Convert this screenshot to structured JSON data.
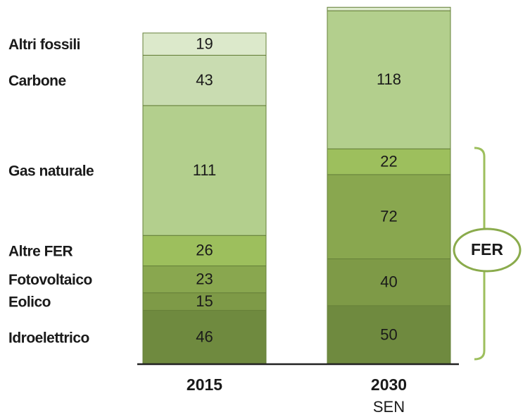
{
  "chart_data": {
    "type": "stacked-bar",
    "categories": [
      "2015",
      "2030"
    ],
    "category_sublabels": [
      null,
      "SEN"
    ],
    "series": [
      {
        "name": "Idroelettrico",
        "color": "#6f8a3f",
        "values": [
          46,
          50
        ]
      },
      {
        "name": "Eolico",
        "color": "#7e9a47",
        "values": [
          15,
          40
        ]
      },
      {
        "name": "Fotovoltaico",
        "color": "#89a74f",
        "values": [
          23,
          72
        ]
      },
      {
        "name": "Altre FER",
        "color": "#9dbf5d",
        "values": [
          26,
          22
        ]
      },
      {
        "name": "Gas naturale",
        "color": "#b3cf8d",
        "values": [
          111,
          118
        ]
      },
      {
        "name": "Carbone",
        "color": "#c9dcb1",
        "values": [
          43,
          0
        ],
        "value_labels": [
          "43",
          null
        ]
      },
      {
        "name": "Altri fossili",
        "color": "#dce9cb",
        "values": [
          19,
          3
        ],
        "value_labels": [
          "19",
          null
        ]
      }
    ],
    "ylim": [
      0,
      310
    ],
    "annotation": "FER"
  }
}
